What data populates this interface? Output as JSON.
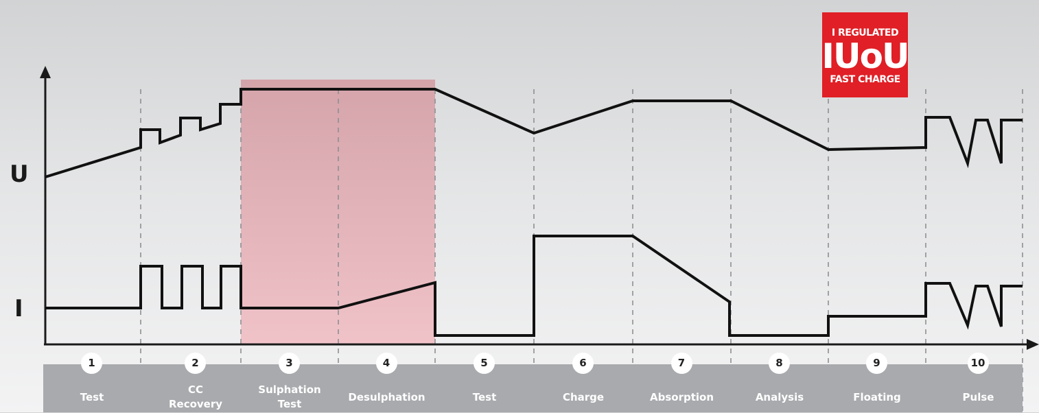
{
  "axes": {
    "upper_label": "U",
    "lower_label": "I"
  },
  "badge": {
    "line1": "I REGULATED",
    "line2": "IUoU",
    "line3": "FAST CHARGE",
    "color": "#e01f26"
  },
  "highlight": {
    "stages": [
      3,
      4
    ],
    "color": "#e8a9b0"
  },
  "stages": [
    {
      "number": "1",
      "label": "Test"
    },
    {
      "number": "2",
      "label": "CC\nRecovery"
    },
    {
      "number": "3",
      "label": "Sulphation\nTest"
    },
    {
      "number": "4",
      "label": "Desulphation"
    },
    {
      "number": "5",
      "label": "Test"
    },
    {
      "number": "6",
      "label": "Charge"
    },
    {
      "number": "7",
      "label": "Absorption"
    },
    {
      "number": "8",
      "label": "Analysis"
    },
    {
      "number": "9",
      "label": "Floating"
    },
    {
      "number": "10",
      "label": "Pulse"
    }
  ]
}
